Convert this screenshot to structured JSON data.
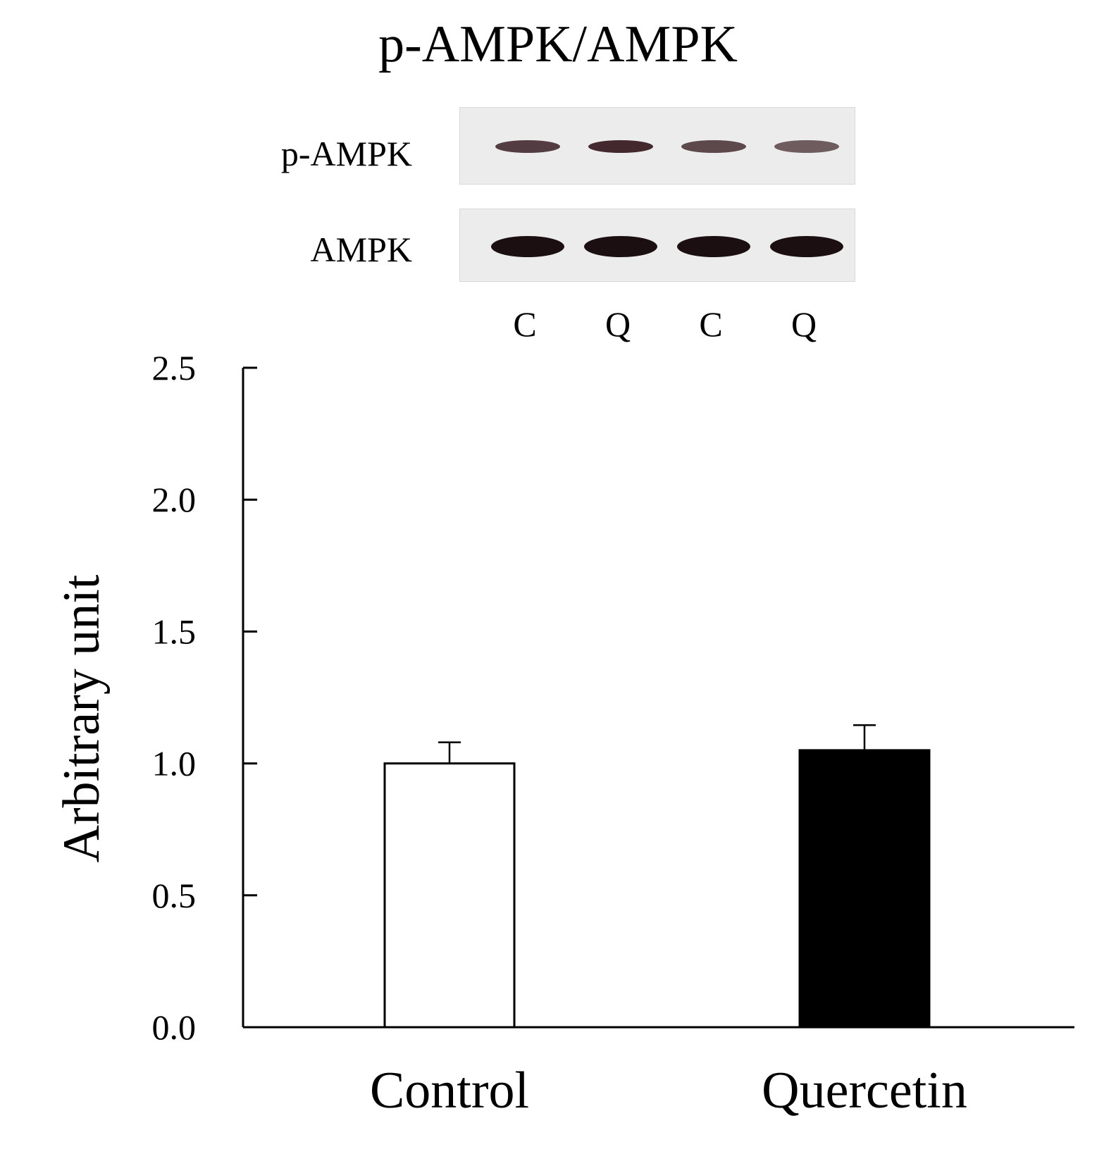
{
  "figure": {
    "title": "p-AMPK/AMPK",
    "blot": {
      "rows": [
        {
          "label": "p-AMPK",
          "band_color": "#3a1f24",
          "band_intensity": [
            0.85,
            0.95,
            0.8,
            0.7
          ]
        },
        {
          "label": "AMPK",
          "band_color": "#1c0f12",
          "band_intensity": [
            1.0,
            1.0,
            1.0,
            1.0
          ]
        }
      ],
      "lanes": [
        "C",
        "Q",
        "C",
        "Q"
      ]
    }
  },
  "chart_data": {
    "type": "bar",
    "title": "",
    "xlabel": "",
    "ylabel": "Arbitrary unit",
    "categories": [
      "Control",
      "Quercetin"
    ],
    "values": [
      1.0,
      1.05
    ],
    "errors": [
      0.08,
      0.095
    ],
    "bar_colors": [
      "#ffffff",
      "#000000"
    ],
    "ylim": [
      0,
      2.5
    ],
    "yticks": [
      "0.0",
      "0.5",
      "1.0",
      "1.5",
      "2.0",
      "2.5"
    ],
    "grid": false,
    "legend": "none"
  }
}
